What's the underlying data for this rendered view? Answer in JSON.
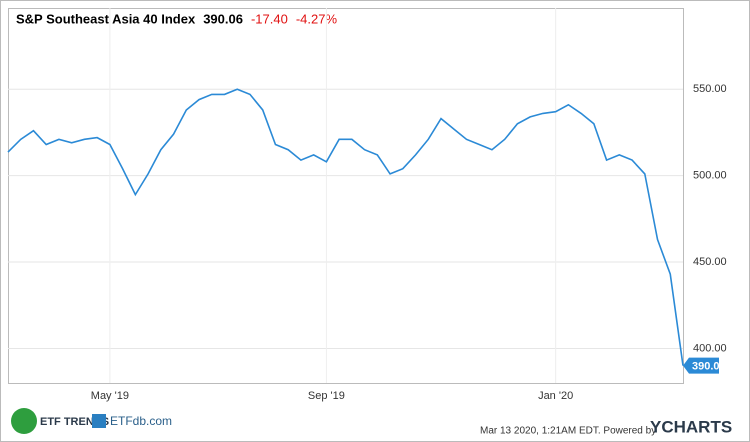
{
  "chart_data": {
    "type": "line",
    "title": "S&P Southeast Asia 40 Index",
    "change": "-17.40",
    "change_percent": "-4.27%",
    "categories": [
      null,
      null,
      null,
      null,
      null,
      null,
      null,
      null,
      "May '19",
      null,
      null,
      null,
      null,
      null,
      null,
      null,
      null,
      null,
      null,
      null,
      null,
      null,
      null,
      null,
      null,
      "Sep '19",
      null,
      null,
      null,
      null,
      null,
      null,
      null,
      null,
      null,
      null,
      null,
      null,
      null,
      null,
      null,
      null,
      null,
      "Jan '20",
      null,
      null,
      null,
      null,
      null,
      null,
      null,
      null,
      null,
      null
    ],
    "values": [
      513.6,
      521,
      526,
      518,
      521,
      519,
      521,
      522,
      518,
      504,
      489,
      501,
      515,
      524,
      538,
      544,
      547,
      547,
      550,
      547,
      538,
      518,
      515,
      509,
      512,
      508,
      521,
      521,
      515,
      512,
      501,
      504,
      512,
      521,
      533,
      527,
      521,
      518,
      515,
      521,
      530,
      534,
      536,
      537,
      541,
      536,
      530,
      509,
      512,
      509,
      501,
      463,
      443,
      390.06
    ],
    "color": "#2b8ad6",
    "ylim": [
      380,
      597
    ],
    "yticks": [
      {
        "value": 400,
        "label": "400.00"
      },
      {
        "value": 450,
        "label": "450.00"
      },
      {
        "value": 500,
        "label": "500.00"
      },
      {
        "value": 550,
        "label": "550.00"
      }
    ],
    "grid": true
  },
  "footer": {
    "timestamp": "Mar 13 2020, 1:21AM EDT.  Powered by",
    "brand": "YCHARTS",
    "logo_left": "ETF TRENDS",
    "logo_right": "ETFdb.com"
  }
}
